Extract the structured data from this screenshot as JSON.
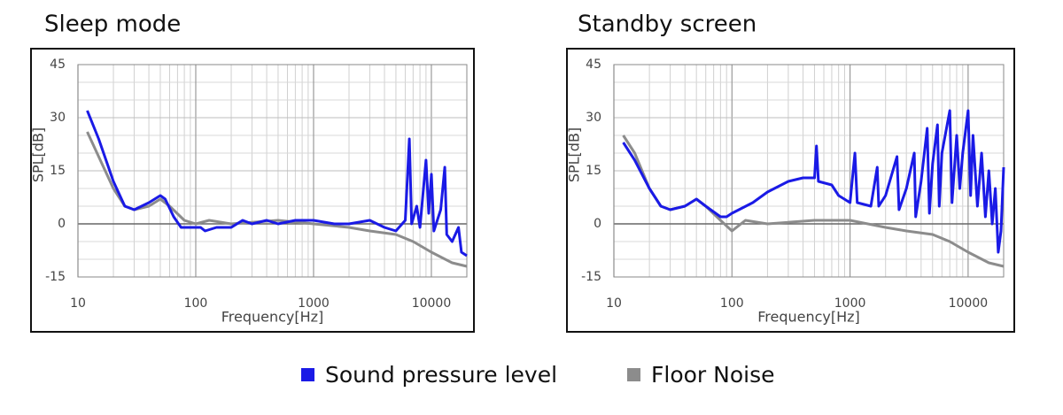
{
  "chart_data": [
    {
      "type": "line",
      "title": "Sleep mode",
      "x_label": "Frequency[Hz]",
      "y_label": "SPL[dB]",
      "log_x": true,
      "grid": true,
      "xlim": [
        10,
        20000
      ],
      "ylim": [
        -15,
        45
      ],
      "xticks": [
        10,
        100,
        1000,
        10000
      ],
      "yticks": [
        -15,
        0,
        15,
        30,
        45
      ],
      "series": [
        {
          "name": "Sound pressure level",
          "color": "#1a1ae6",
          "x": [
            12,
            15,
            20,
            25,
            30,
            40,
            50,
            55,
            65,
            75,
            90,
            110,
            120,
            150,
            200,
            250,
            300,
            400,
            500,
            700,
            1000,
            1500,
            2000,
            3000,
            4000,
            5000,
            6000,
            6500,
            6800,
            7500,
            8000,
            9000,
            9500,
            10000,
            10500,
            12000,
            13000,
            13500,
            15000,
            17000,
            18000,
            20000
          ],
          "values": [
            32,
            24,
            12,
            5,
            4,
            6,
            8,
            7,
            2,
            -1,
            -1,
            -1,
            -2,
            -1,
            -1,
            1,
            0,
            1,
            0,
            1,
            1,
            0,
            0,
            1,
            -1,
            -2,
            1,
            24,
            0,
            5,
            -1,
            18,
            3,
            14,
            -2,
            4,
            16,
            -3,
            -5,
            -1,
            -8,
            -9
          ]
        },
        {
          "name": "Floor Noise",
          "color": "#8c8c8c",
          "x": [
            12,
            15,
            20,
            25,
            30,
            40,
            50,
            60,
            80,
            100,
            130,
            200,
            500,
            1000,
            2000,
            3000,
            5000,
            7000,
            10000,
            15000,
            20000
          ],
          "values": [
            26,
            19,
            10,
            5,
            4,
            5,
            7,
            5,
            1,
            0,
            1,
            0,
            1,
            0,
            -1,
            -2,
            -3,
            -5,
            -8,
            -11,
            -12
          ]
        }
      ]
    },
    {
      "type": "line",
      "title": "Standby screen",
      "x_label": "Frequency[Hz]",
      "y_label": "SPL[dB]",
      "log_x": true,
      "grid": true,
      "xlim": [
        10,
        20000
      ],
      "ylim": [
        -15,
        45
      ],
      "xticks": [
        10,
        100,
        1000,
        10000
      ],
      "yticks": [
        -15,
        0,
        15,
        30,
        45
      ],
      "series": [
        {
          "name": "Sound pressure level",
          "color": "#1a1ae6",
          "x": [
            12,
            15,
            20,
            25,
            30,
            40,
            50,
            60,
            80,
            90,
            100,
            150,
            200,
            300,
            400,
            500,
            520,
            540,
            700,
            800,
            1000,
            1100,
            1150,
            1500,
            1700,
            1750,
            2000,
            2500,
            2600,
            3000,
            3500,
            3600,
            4000,
            4500,
            4700,
            5000,
            5500,
            5700,
            6000,
            7000,
            7300,
            8000,
            8500,
            9000,
            10000,
            10500,
            11000,
            12000,
            13000,
            14000,
            15000,
            16000,
            17000,
            18000,
            19000,
            20000
          ],
          "values": [
            23,
            18,
            10,
            5,
            4,
            5,
            7,
            5,
            2,
            2,
            3,
            6,
            9,
            12,
            13,
            13,
            22,
            12,
            11,
            8,
            6,
            20,
            6,
            5,
            16,
            5,
            8,
            19,
            4,
            10,
            20,
            2,
            12,
            27,
            3,
            17,
            28,
            5,
            20,
            32,
            6,
            25,
            10,
            20,
            32,
            8,
            25,
            5,
            20,
            2,
            15,
            0,
            10,
            -8,
            -2,
            16
          ]
        },
        {
          "name": "Floor Noise",
          "color": "#8c8c8c",
          "x": [
            12,
            15,
            20,
            25,
            30,
            40,
            50,
            60,
            80,
            100,
            130,
            200,
            500,
            1000,
            2000,
            3000,
            5000,
            7000,
            10000,
            15000,
            20000
          ],
          "values": [
            25,
            20,
            10,
            5,
            4,
            5,
            7,
            5,
            1,
            -2,
            1,
            0,
            1,
            1,
            -1,
            -2,
            -3,
            -5,
            -8,
            -11,
            -12
          ]
        }
      ]
    }
  ]
}
